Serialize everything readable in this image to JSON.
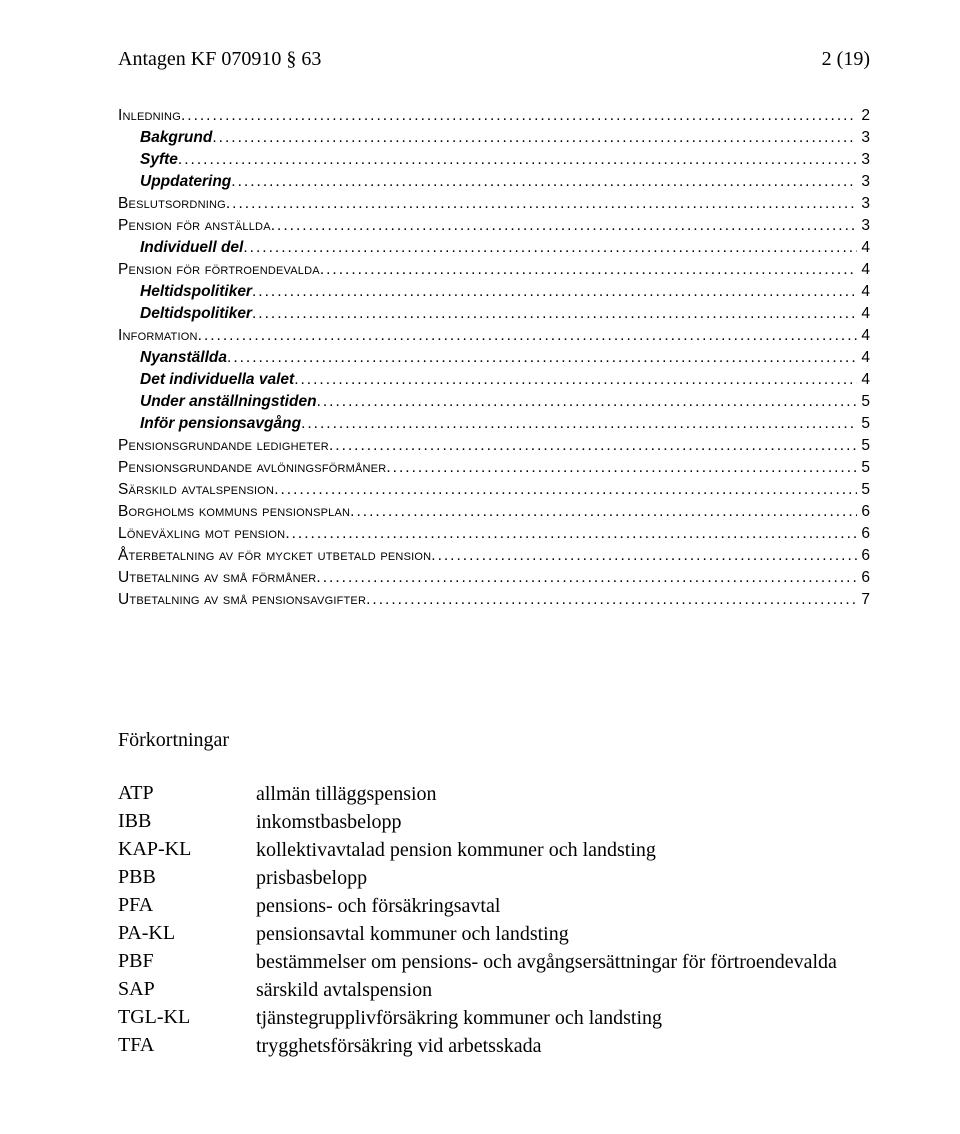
{
  "header": {
    "left": "Antagen KF 070910 § 63",
    "right": "2 (19)"
  },
  "toc": [
    {
      "label": "Inledning",
      "style": "smallcaps",
      "indent": 0,
      "page": "2"
    },
    {
      "label": "Bakgrund",
      "style": "bolditalic",
      "indent": 1,
      "page": "3"
    },
    {
      "label": "Syfte",
      "style": "bolditalic",
      "indent": 1,
      "page": "3"
    },
    {
      "label": "Uppdatering",
      "style": "bolditalic",
      "indent": 1,
      "page": "3"
    },
    {
      "label": "Beslutsordning",
      "style": "smallcaps",
      "indent": 0,
      "page": "3"
    },
    {
      "label": "Pension för anställda",
      "style": "smallcaps",
      "indent": 0,
      "page": "3"
    },
    {
      "label": "Individuell del",
      "style": "bolditalic",
      "indent": 1,
      "page": "4"
    },
    {
      "label": "Pension för förtroendevalda",
      "style": "smallcaps",
      "indent": 0,
      "page": "4"
    },
    {
      "label": "Heltidspolitiker",
      "style": "bolditalic",
      "indent": 1,
      "page": "4"
    },
    {
      "label": "Deltidspolitiker",
      "style": "bolditalic",
      "indent": 1,
      "page": "4"
    },
    {
      "label": "Information",
      "style": "smallcaps",
      "indent": 0,
      "page": "4"
    },
    {
      "label": "Nyanställda",
      "style": "bolditalic",
      "indent": 1,
      "page": "4"
    },
    {
      "label": "Det individuella valet",
      "style": "bolditalic",
      "indent": 1,
      "page": "4"
    },
    {
      "label": "Under anställningstiden",
      "style": "bolditalic",
      "indent": 1,
      "page": "5"
    },
    {
      "label": "Inför pensionsavgång",
      "style": "bolditalic",
      "indent": 1,
      "page": "5"
    },
    {
      "label": "Pensionsgrundande ledigheter",
      "style": "smallcaps",
      "indent": 0,
      "page": "5"
    },
    {
      "label": "Pensionsgrundande avlöningsförmåner",
      "style": "smallcaps",
      "indent": 0,
      "page": "5"
    },
    {
      "label": "Särskild avtalspension",
      "style": "smallcaps",
      "indent": 0,
      "page": "5"
    },
    {
      "label": "Borgholms kommuns pensionsplan",
      "style": "smallcaps",
      "indent": 0,
      "page": "6"
    },
    {
      "label": "Löneväxling mot pension",
      "style": "smallcaps",
      "indent": 0,
      "page": "6"
    },
    {
      "label": "Återbetalning av för mycket utbetald pension",
      "style": "smallcaps",
      "indent": 0,
      "page": "6"
    },
    {
      "label": "Utbetalning av små förmåner",
      "style": "smallcaps",
      "indent": 0,
      "page": "6"
    },
    {
      "label": "Utbetalning av små pensionsavgifter",
      "style": "smallcaps",
      "indent": 0,
      "page": "7"
    }
  ],
  "abbrev": {
    "title": "Förkortningar",
    "rows": [
      {
        "key": "ATP",
        "val": "allmän tilläggspension"
      },
      {
        "key": "IBB",
        "val": "inkomstbasbelopp"
      },
      {
        "key": "KAP-KL",
        "val": "kollektivavtalad pension kommuner och landsting"
      },
      {
        "key": "PBB",
        "val": "prisbasbelopp"
      },
      {
        "key": "PFA",
        "val": "pensions- och försäkringsavtal"
      },
      {
        "key": "PA-KL",
        "val": "pensionsavtal kommuner och landsting"
      },
      {
        "key": "PBF",
        "val": "bestämmelser om pensions- och avgångsersättningar för förtroendevalda"
      },
      {
        "key": "SAP",
        "val": "särskild avtalspension"
      },
      {
        "key": "TGL-KL",
        "val": "tjänstegrupplivförsäkring kommuner och landsting"
      },
      {
        "key": "TFA",
        "val": "trygghetsförsäkring vid arbetsskada"
      }
    ]
  }
}
